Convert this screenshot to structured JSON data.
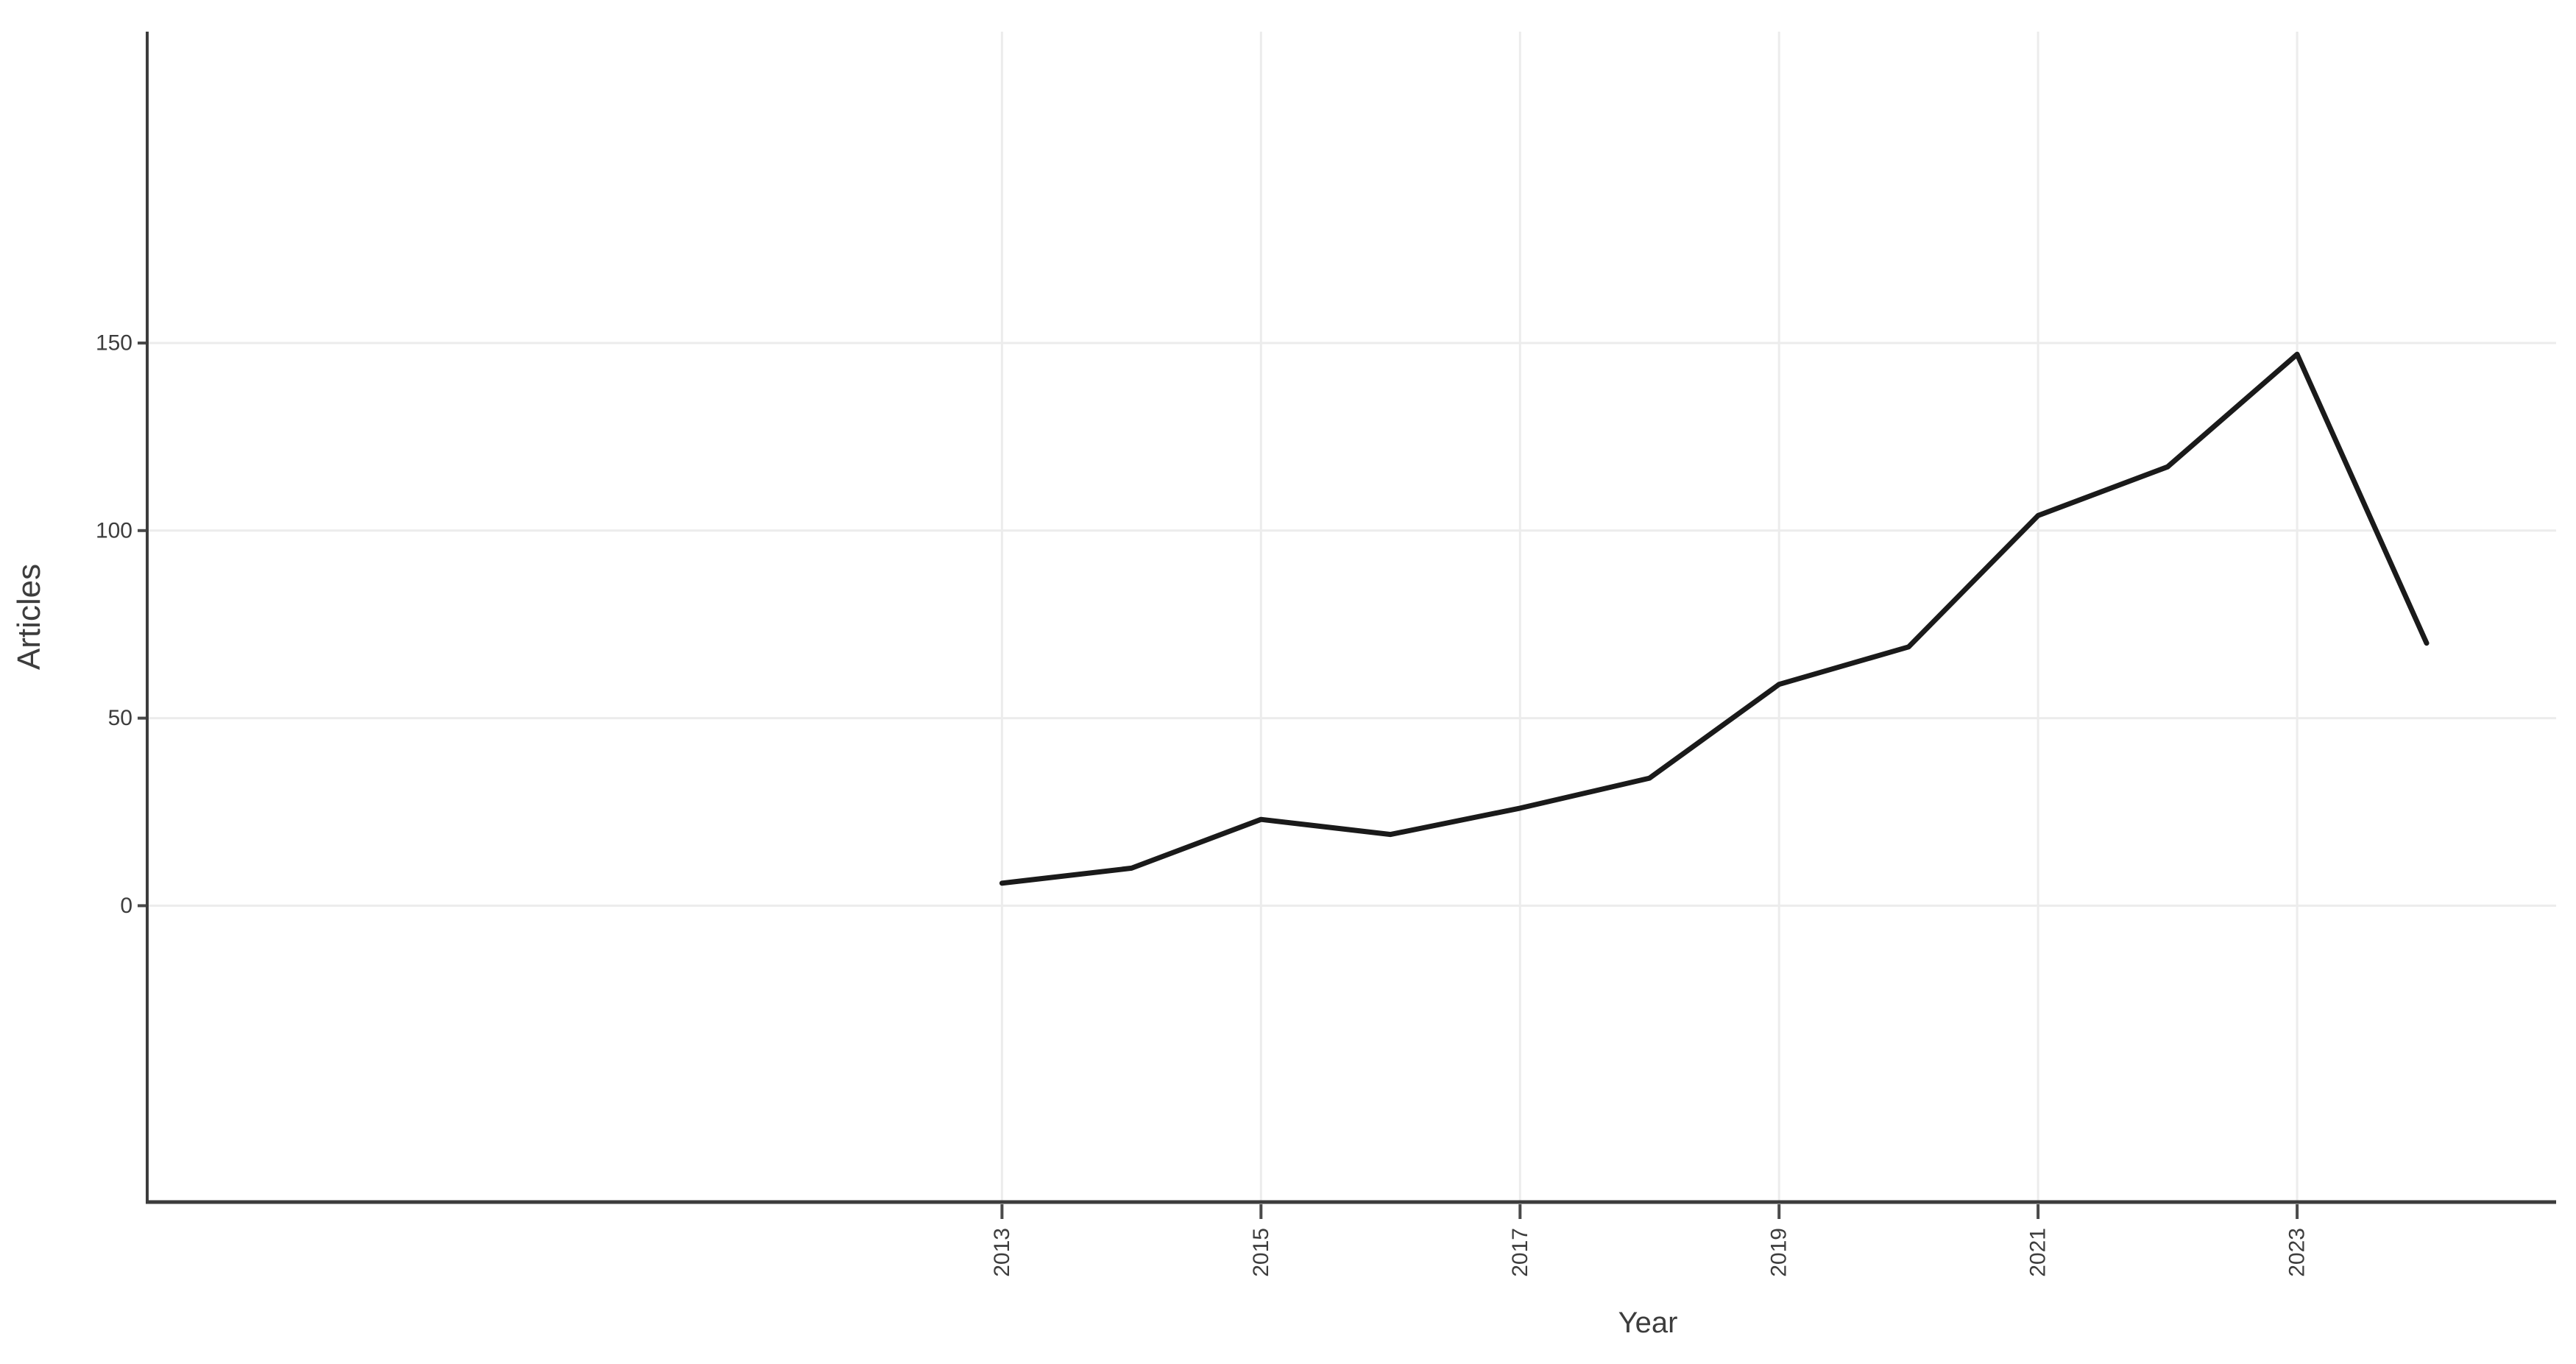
{
  "page": {
    "background": "#ffffff"
  },
  "chart_data": {
    "type": "line",
    "title": "",
    "xlabel": "Year",
    "ylabel": "Articles",
    "x": [
      2013,
      2014,
      2015,
      2016,
      2017,
      2018,
      2019,
      2020,
      2021,
      2022,
      2023,
      2024
    ],
    "values": [
      6,
      10,
      23,
      19,
      26,
      34,
      59,
      69,
      104,
      117,
      147,
      70
    ],
    "xticks": [
      2013,
      2015,
      2017,
      2019,
      2021,
      2023
    ],
    "yticks": [
      0,
      50,
      100,
      150
    ],
    "xlim": [
      2006.4,
      2025.0
    ],
    "ylim": [
      -79,
      233
    ],
    "x_tick_rotation": -90,
    "grid": true,
    "legend": false,
    "line_color": "#1a1a1a",
    "grid_color": "#ececec",
    "axis_color": "#3c3c3c",
    "tick_color": "#4a4a4a",
    "tick_label_color": "#3d3d3d",
    "axis_title_color": "#3d3d3d"
  }
}
